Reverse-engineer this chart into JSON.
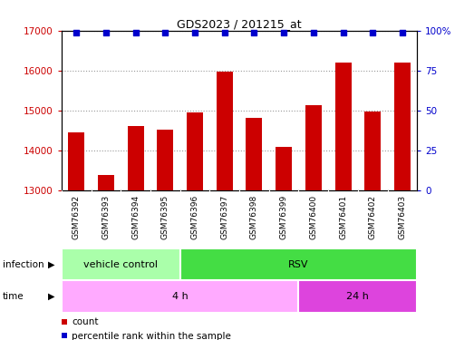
{
  "title": "GDS2023 / 201215_at",
  "samples": [
    "GSM76392",
    "GSM76393",
    "GSM76394",
    "GSM76395",
    "GSM76396",
    "GSM76397",
    "GSM76398",
    "GSM76399",
    "GSM76400",
    "GSM76401",
    "GSM76402",
    "GSM76403"
  ],
  "counts": [
    14450,
    13380,
    14620,
    14520,
    14950,
    15980,
    14820,
    14100,
    15130,
    16200,
    14980,
    16200
  ],
  "percentile_ranks": [
    99,
    99,
    99,
    99,
    99,
    99,
    99,
    99,
    99,
    99,
    99,
    99
  ],
  "ylim_left": [
    13000,
    17000
  ],
  "ylim_right": [
    0,
    100
  ],
  "yticks_left": [
    13000,
    14000,
    15000,
    16000,
    17000
  ],
  "yticks_right": [
    0,
    25,
    50,
    75,
    100
  ],
  "bar_color": "#cc0000",
  "dot_color": "#0000cc",
  "infection_groups": [
    {
      "label": "vehicle control",
      "start": 0,
      "end": 4,
      "color": "#aaffaa"
    },
    {
      "label": "RSV",
      "start": 4,
      "end": 12,
      "color": "#44dd44"
    }
  ],
  "time_groups": [
    {
      "label": "4 h",
      "start": 0,
      "end": 8,
      "color": "#ffaaff"
    },
    {
      "label": "24 h",
      "start": 8,
      "end": 12,
      "color": "#dd44dd"
    }
  ],
  "grid_color": "#999999",
  "bg_color": "#ffffff",
  "label_area_bg": "#cccccc",
  "n_samples": 12
}
